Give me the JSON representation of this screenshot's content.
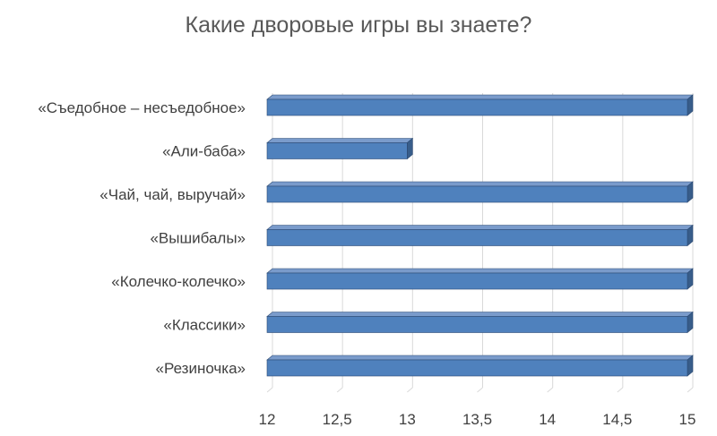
{
  "chart_data": {
    "type": "bar",
    "orientation": "horizontal",
    "title": "Какие дворовые игры вы знаете?",
    "categories": [
      "«Съедобное – несъедобное»",
      "«Али-баба»",
      "«Чай, чай, выручай»",
      "«Вышибалы»",
      "«Колечко-колечко»",
      "«Классики»",
      "«Резиночка»"
    ],
    "values": [
      15,
      13,
      15,
      15,
      15,
      15,
      15
    ],
    "xlim": [
      12,
      15
    ],
    "x_ticks": [
      "12",
      "12,5",
      "13",
      "13,5",
      "14",
      "14,5",
      "15"
    ],
    "x_tick_values": [
      12,
      12.5,
      13,
      13.5,
      14,
      14.5,
      15
    ],
    "grid": true,
    "legend": "none",
    "xlabel": "",
    "ylabel": "",
    "colors": {
      "bar_front": "#4F81BD",
      "bar_top": "#7A9BCB",
      "bar_side": "#385D8A",
      "bar_edge": "#2C4A73",
      "grid": "#D9D9D9",
      "axis": "#BFBFBF",
      "text": "#404040",
      "title": "#595959"
    }
  }
}
